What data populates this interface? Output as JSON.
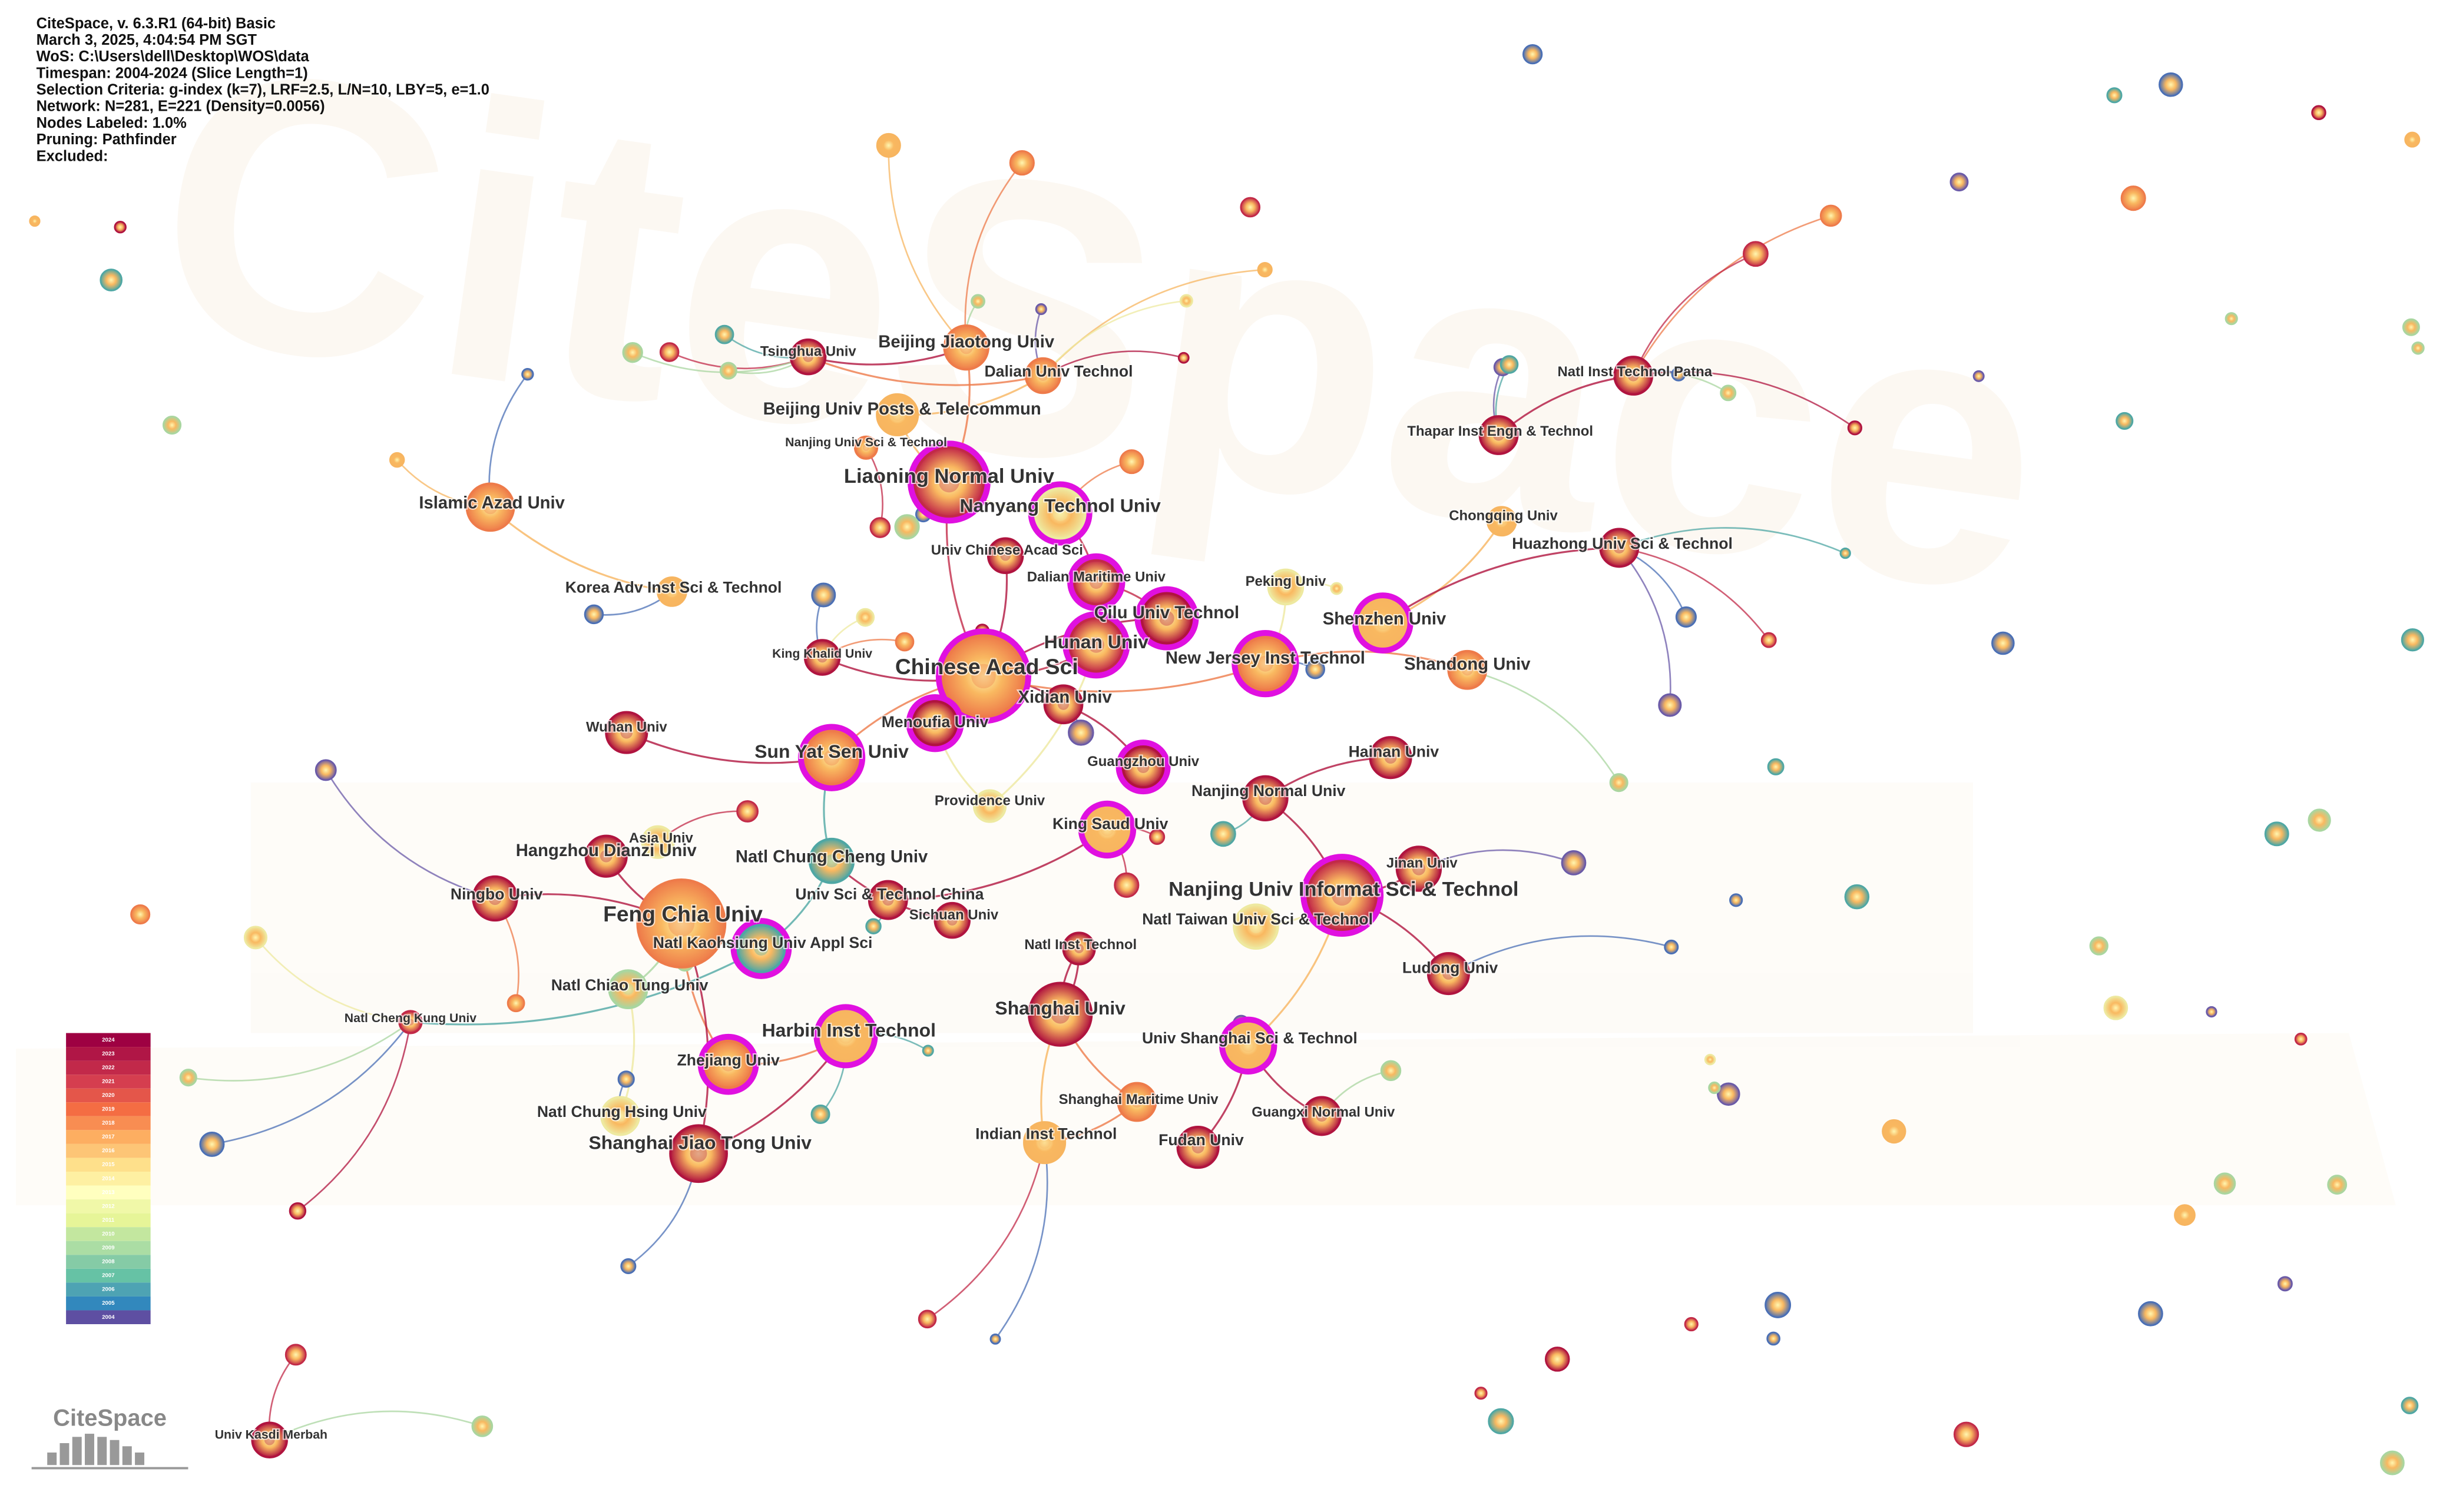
{
  "header": {
    "lines": [
      "CiteSpace, v. 6.3.R1 (64-bit) Basic",
      "March 3, 2025, 4:04:54 PM SGT",
      "WoS: C:\\Users\\dell\\Desktop\\WOS\\data",
      "Timespan: 2004-2024 (Slice Length=1)",
      "Selection Criteria: g-index (k=7), LRF=2.5, L/N=10, LBY=5, e=1.0",
      "Network: N=281, E=221 (Density=0.0056)",
      "Nodes Labeled: 1.0%",
      "Pruning: Pathfinder",
      "Excluded:"
    ]
  },
  "logo": "CiteSpace",
  "legend": {
    "years": [
      2024,
      2023,
      2022,
      2021,
      2020,
      2019,
      2018,
      2017,
      2016,
      2015,
      2014,
      2013,
      2012,
      2011,
      2010,
      2009,
      2008,
      2007,
      2006,
      2005,
      2004
    ]
  },
  "nodes": [
    {
      "label": "Chinese Acad Sci"
    },
    {
      "label": "Feng Chia Univ"
    },
    {
      "label": "Nanjing Univ Informat Sci & Technol"
    },
    {
      "label": "Liaoning Normal Univ"
    },
    {
      "label": "Nanyang Technol Univ"
    },
    {
      "label": "Shanghai Univ"
    },
    {
      "label": "Sun Yat Sen Univ"
    },
    {
      "label": "Hunan Univ"
    },
    {
      "label": "Qilu Univ Technol"
    },
    {
      "label": "New Jersey Inst Technol"
    },
    {
      "label": "Shenzhen Univ"
    },
    {
      "label": "Menoufia Univ"
    },
    {
      "label": "Xidian Univ"
    },
    {
      "label": "Dalian Maritime Univ"
    },
    {
      "label": "Beijing Jiaotong Univ"
    },
    {
      "label": "Tsinghua Univ"
    },
    {
      "label": "Dalian Univ Technol"
    },
    {
      "label": "Beijing Univ Posts & Telecommun"
    },
    {
      "label": "Nanjing Univ Sci & Technol"
    },
    {
      "label": "Islamic Azad Univ"
    },
    {
      "label": "Univ Chinese Acad Sci"
    },
    {
      "label": "Korea Adv Inst Sci & Technol"
    },
    {
      "label": "King Khalid Univ"
    },
    {
      "label": "Peking Univ"
    },
    {
      "label": "Chongqing Univ"
    },
    {
      "label": "Huazhong Univ Sci & Technol"
    },
    {
      "label": "Thapar Inst Engn & Technol"
    },
    {
      "label": "Natl Inst Technol Patna"
    },
    {
      "label": "Shandong Univ"
    },
    {
      "label": "Hainan Univ"
    },
    {
      "label": "Guangzhou Univ"
    },
    {
      "label": "Nanjing Normal Univ"
    },
    {
      "label": "Providence Univ"
    },
    {
      "label": "King Saud Univ"
    },
    {
      "label": "Wuhan Univ"
    },
    {
      "label": "Asia Univ"
    },
    {
      "label": "Hangzhou Dianzi Univ"
    },
    {
      "label": "Ningbo Univ"
    },
    {
      "label": "Natl Chung Cheng Univ"
    },
    {
      "label": "Univ Sci & Technol China"
    },
    {
      "label": "Sichuan Univ"
    },
    {
      "label": "Natl Kaohsiung Univ Appl Sci"
    },
    {
      "label": "Jinan Univ"
    },
    {
      "label": "Natl Taiwan Univ Sci & Technol"
    },
    {
      "label": "Natl Inst Technol"
    },
    {
      "label": "Natl Chiao Tung Univ"
    },
    {
      "label": "Natl Cheng Kung Univ"
    },
    {
      "label": "Ludong Univ"
    },
    {
      "label": "Harbin Inst Technol"
    },
    {
      "label": "Zhejiang Univ"
    },
    {
      "label": "Univ Shanghai Sci & Technol"
    },
    {
      "label": "Shanghai Maritime Univ"
    },
    {
      "label": "Guangxi Normal Univ"
    },
    {
      "label": "Natl Chung Hsing Univ"
    },
    {
      "label": "Shanghai Jiao Tong Univ"
    },
    {
      "label": "Indian Inst Technol"
    },
    {
      "label": "Fudan Univ"
    },
    {
      "label": "Univ Kasdi Merbah"
    }
  ]
}
